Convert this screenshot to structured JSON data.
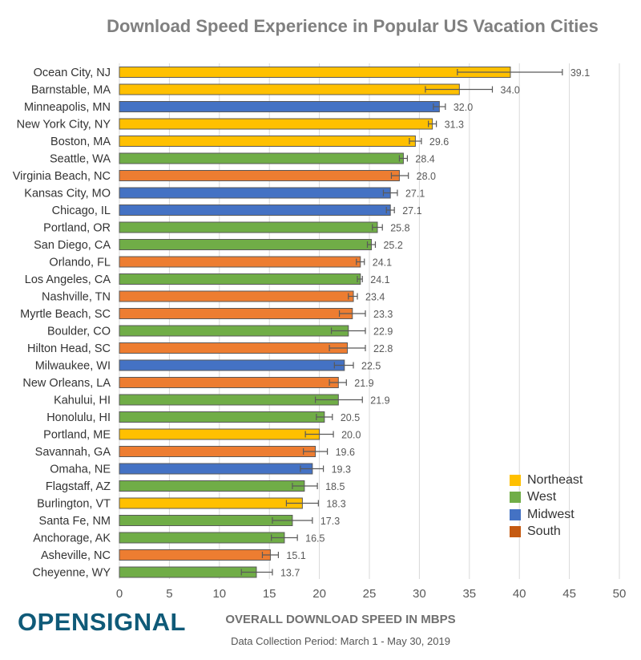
{
  "chart_data": {
    "type": "bar",
    "orientation": "horizontal",
    "title": "Download Speed Experience in Popular US Vacation Cities",
    "xlabel": "OVERALL DOWNLOAD SPEED IN MBPS",
    "note": "Data Collection Period: March 1 - May 30, 2019",
    "xlim": [
      0,
      50
    ],
    "xticks": [
      0,
      5,
      10,
      15,
      20,
      25,
      30,
      35,
      40,
      45,
      50
    ],
    "grid": "vertical",
    "legend_position": "bottom-right",
    "colors": {
      "Northeast": "#ffc000",
      "West": "#70ad47",
      "Midwest": "#4472c4",
      "South": "#ed7d31"
    },
    "legend": [
      "Northeast",
      "West",
      "Midwest",
      "South"
    ],
    "categories": [
      "Ocean City, NJ",
      "Barnstable, MA",
      "Minneapolis, MN",
      "New York City, NY",
      "Boston, MA",
      "Seattle, WA",
      "Virginia Beach, NC",
      "Kansas City, MO",
      "Chicago, IL",
      "Portland, OR",
      "San Diego, CA",
      "Orlando, FL",
      "Los Angeles, CA",
      "Nashville, TN",
      "Myrtle Beach, SC",
      "Boulder, CO",
      "Hilton Head, SC",
      "Milwaukee, WI",
      "New Orleans, LA",
      "Kahului, HI",
      "Honolulu, HI",
      "Portland, ME",
      "Savannah, GA",
      "Omaha, NE",
      "Flagstaff, AZ",
      "Burlington, VT",
      "Santa Fe, NM",
      "Anchorage, AK",
      "Asheville, NC",
      "Cheyenne, WY"
    ],
    "values": [
      39.1,
      34.0,
      32.0,
      31.3,
      29.6,
      28.4,
      28.0,
      27.1,
      27.1,
      25.8,
      25.2,
      24.1,
      24.1,
      23.4,
      23.3,
      22.9,
      22.8,
      22.5,
      21.9,
      21.9,
      20.5,
      20.0,
      19.6,
      19.3,
      18.5,
      18.3,
      17.3,
      16.5,
      15.1,
      13.7
    ],
    "value_labels": [
      "39.1",
      "34.0",
      "32.0",
      "31.3",
      "29.6",
      "28.4",
      "28.0",
      "27.1",
      "27.1",
      "25.8",
      "25.2",
      "24.1",
      "24.1",
      "23.4",
      "23.3",
      "22.9",
      "22.8",
      "22.5",
      "21.9",
      "21.9",
      "20.5",
      "20.0",
      "19.6",
      "19.3",
      "18.5",
      "18.3",
      "17.3",
      "16.5",
      "15.1",
      "13.7"
    ],
    "regions": [
      "Northeast",
      "Northeast",
      "Midwest",
      "Northeast",
      "Northeast",
      "West",
      "South",
      "Midwest",
      "Midwest",
      "West",
      "West",
      "South",
      "West",
      "South",
      "South",
      "West",
      "South",
      "Midwest",
      "South",
      "West",
      "West",
      "Northeast",
      "South",
      "Midwest",
      "West",
      "Northeast",
      "West",
      "West",
      "South",
      "West"
    ],
    "error_low": [
      33.8,
      30.6,
      31.4,
      30.9,
      29.0,
      28.0,
      27.2,
      26.4,
      26.7,
      25.3,
      24.8,
      23.7,
      23.8,
      22.9,
      22.0,
      21.2,
      21.0,
      21.5,
      21.0,
      19.6,
      19.7,
      18.6,
      18.4,
      18.1,
      17.3,
      16.7,
      15.3,
      15.2,
      14.3,
      12.2
    ],
    "error_high": [
      44.3,
      37.3,
      32.6,
      31.7,
      30.2,
      28.8,
      28.9,
      27.8,
      27.5,
      26.3,
      25.6,
      24.5,
      24.3,
      23.8,
      24.6,
      24.6,
      24.6,
      23.4,
      22.7,
      24.3,
      21.3,
      21.4,
      20.8,
      20.4,
      19.8,
      19.9,
      19.3,
      17.8,
      15.9,
      15.3
    ]
  },
  "brand": {
    "logo_text": "OPENSIGNAL"
  }
}
